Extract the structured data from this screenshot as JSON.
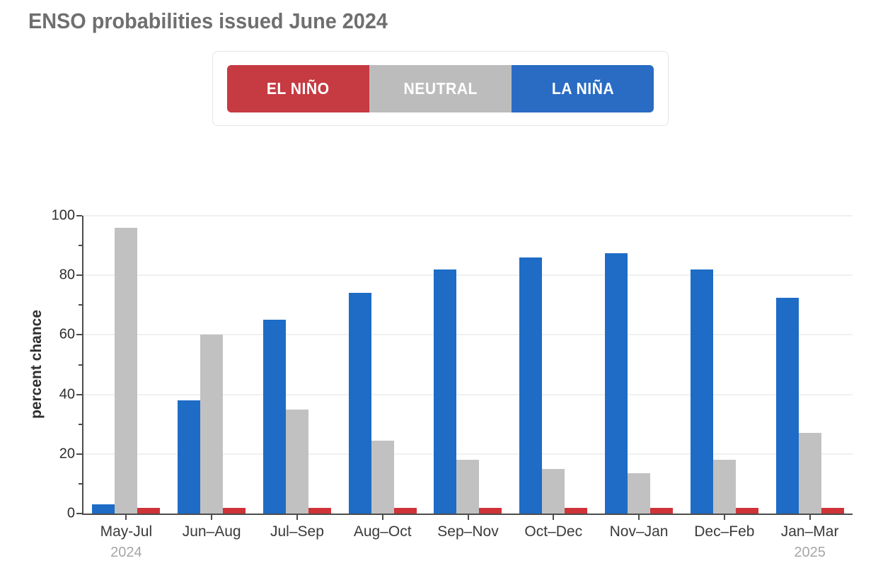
{
  "title": "ENSO probabilities issued June 2024",
  "legend": {
    "items": [
      {
        "label": "EL NIÑO",
        "color": "#c63a41",
        "text_color": "#ffffff"
      },
      {
        "label": "NEUTRAL",
        "color": "#bcbcbc",
        "text_color": "#ffffff"
      },
      {
        "label": "LA NIÑA",
        "color": "#2a6cc4",
        "text_color": "#ffffff"
      }
    ]
  },
  "chart_data": {
    "type": "bar",
    "title": "ENSO probabilities issued June 2024",
    "xlabel": "",
    "ylabel": "percent chance",
    "ylim": [
      0,
      100
    ],
    "yticks_major": [
      0,
      20,
      40,
      60,
      80,
      100
    ],
    "yticks_minor": [
      10,
      30,
      50,
      70,
      90
    ],
    "grid": "horizontal light gridlines at major ticks",
    "legend_position": "top center",
    "categories": [
      "May-Jul",
      "Jun–Aug",
      "Jul–Sep",
      "Aug–Oct",
      "Sep–Nov",
      "Oct–Dec",
      "Nov–Jan",
      "Dec–Feb",
      "Jan–Mar"
    ],
    "category_year_notes": [
      {
        "index": 0,
        "year": "2024"
      },
      {
        "index": 8,
        "year": "2025"
      }
    ],
    "series": [
      {
        "name": "LA NIÑA",
        "color": "#1e6cc6",
        "values": [
          3,
          38,
          65,
          74,
          82,
          86,
          87.5,
          82,
          72.5
        ]
      },
      {
        "name": "NEUTRAL",
        "color": "#c1c1c1",
        "values": [
          96,
          60,
          35,
          24.5,
          18,
          15,
          13.5,
          18,
          27
        ]
      },
      {
        "name": "EL NIÑO",
        "color": "#cf3237",
        "values": [
          2,
          2,
          2,
          2,
          2,
          2,
          2,
          2,
          2
        ]
      }
    ],
    "axis_color": "#4c4c4c",
    "gridline_color": "#f0f0f0",
    "tick_label_color": "#2d2d2d",
    "title_color": "#6f6f6f",
    "year_label_color": "#a6a6a6"
  }
}
